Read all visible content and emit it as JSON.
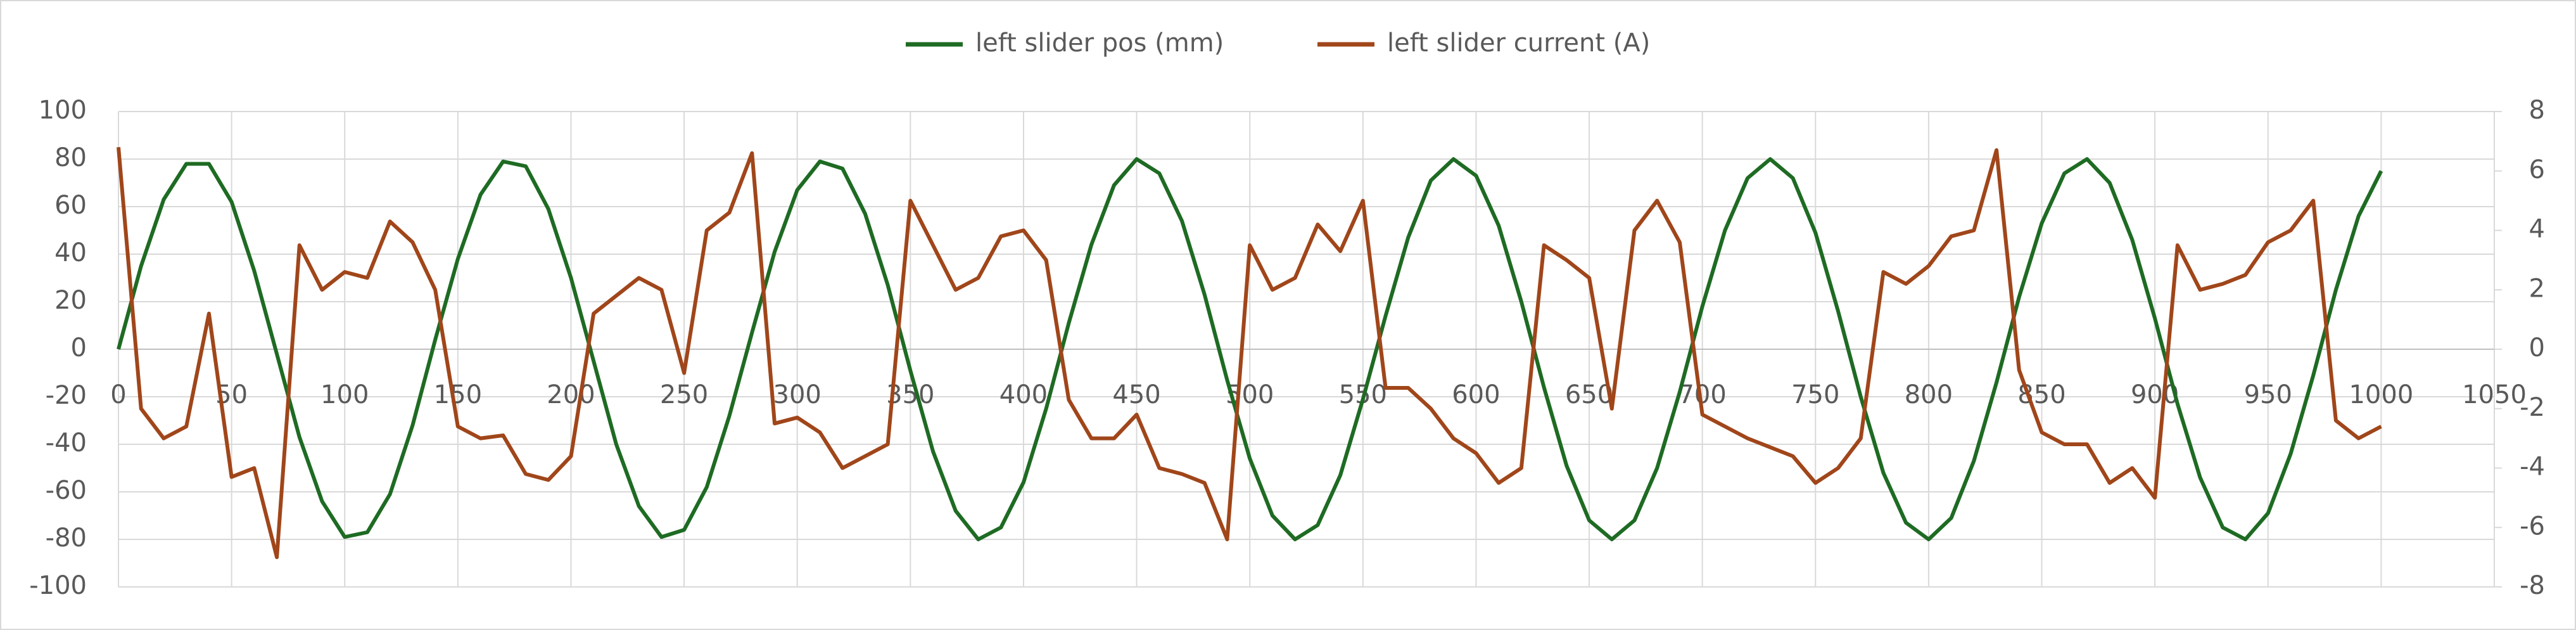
{
  "chart_data": {
    "type": "line",
    "x": [
      0,
      10,
      20,
      30,
      40,
      50,
      60,
      70,
      80,
      90,
      100,
      110,
      120,
      130,
      140,
      150,
      160,
      170,
      180,
      190,
      200,
      210,
      220,
      230,
      240,
      250,
      260,
      270,
      280,
      290,
      300,
      310,
      320,
      330,
      340,
      350,
      360,
      370,
      380,
      390,
      400,
      410,
      420,
      430,
      440,
      450,
      460,
      470,
      480,
      490,
      500,
      510,
      520,
      530,
      540,
      550,
      560,
      570,
      580,
      590,
      600,
      610,
      620,
      630,
      640,
      650,
      660,
      670,
      680,
      690,
      700,
      710,
      720,
      730,
      740,
      750,
      760,
      770,
      780,
      790,
      800,
      810,
      820,
      830,
      840,
      850,
      860,
      870,
      880,
      890,
      900,
      910,
      920,
      930,
      940,
      950,
      960,
      970,
      980,
      990,
      1000
    ],
    "series": [
      {
        "name": "left slider pos (mm)",
        "color": "#1e6b23",
        "axis": "y",
        "values": [
          0,
          35,
          63,
          78,
          78,
          62,
          33,
          -2,
          -37,
          -64,
          -79,
          -77,
          -61,
          -32,
          4,
          38,
          65,
          79,
          77,
          59,
          30,
          -5,
          -40,
          -66,
          -79,
          -76,
          -58,
          -28,
          7,
          41,
          67,
          79,
          76,
          57,
          27,
          -9,
          -43,
          -68,
          -80,
          -75,
          -56,
          -25,
          11,
          44,
          69,
          80,
          74,
          54,
          23,
          -13,
          -46,
          -70,
          -80,
          -74,
          -53,
          -21,
          14,
          47,
          71,
          80,
          73,
          52,
          20,
          -16,
          -49,
          -72,
          -80,
          -72,
          -50,
          -18,
          18,
          50,
          72,
          80,
          72,
          49,
          16,
          -20,
          -52,
          -73,
          -80,
          -71,
          -47,
          -14,
          22,
          53,
          74,
          80,
          70,
          46,
          13,
          -23,
          -54,
          -75,
          -80,
          -69,
          -44,
          -11,
          25,
          56,
          75
        ]
      },
      {
        "name": "left slider current (A)",
        "color": "#a0461a",
        "axis": "y2",
        "values": [
          6.8,
          -2.0,
          -3.0,
          -2.6,
          1.2,
          -4.3,
          -4.0,
          -7.0,
          3.5,
          2.0,
          2.6,
          2.4,
          4.3,
          3.6,
          2.0,
          -2.6,
          -3.0,
          -2.9,
          -4.2,
          -4.4,
          -3.6,
          1.2,
          1.8,
          2.4,
          2.0,
          -0.8,
          4.0,
          4.6,
          6.6,
          -2.5,
          -2.3,
          -2.8,
          -4.0,
          -3.6,
          -3.2,
          5.0,
          3.5,
          2.0,
          2.4,
          3.8,
          4.0,
          3.0,
          -1.7,
          -3.0,
          -3.0,
          -2.2,
          -4.0,
          -4.2,
          -4.5,
          -6.4,
          3.5,
          2.0,
          2.4,
          4.2,
          3.3,
          5.0,
          -1.3,
          -1.3,
          -2.0,
          -3.0,
          -3.5,
          -4.5,
          -4.0,
          3.5,
          3.0,
          2.4,
          -2.0,
          4.0,
          5.0,
          3.6,
          -2.2,
          -2.6,
          -3.0,
          -3.3,
          -3.6,
          -4.5,
          -4.0,
          -3.0,
          2.6,
          2.2,
          2.8,
          3.8,
          4.0,
          6.7,
          -0.7,
          -2.8,
          -3.2,
          -3.2,
          -4.5,
          -4.0,
          -5.0,
          3.5,
          2.0,
          2.2,
          2.5,
          3.6,
          4.0,
          5.0,
          -2.4,
          -3.0,
          -2.6
        ]
      }
    ],
    "xlim": [
      0,
      1050
    ],
    "xticks": [
      0,
      50,
      100,
      150,
      200,
      250,
      300,
      350,
      400,
      450,
      500,
      550,
      600,
      650,
      700,
      750,
      800,
      850,
      900,
      950,
      1000,
      1050
    ],
    "ylim": [
      -100,
      100
    ],
    "yticks": [
      -100,
      -80,
      -60,
      -40,
      -20,
      0,
      20,
      40,
      60,
      80,
      100
    ],
    "y2lim": [
      -8,
      8
    ],
    "y2ticks": [
      -8,
      -6,
      -4,
      -2,
      0,
      2,
      4,
      6,
      8
    ],
    "grid": true,
    "legend": "top"
  }
}
